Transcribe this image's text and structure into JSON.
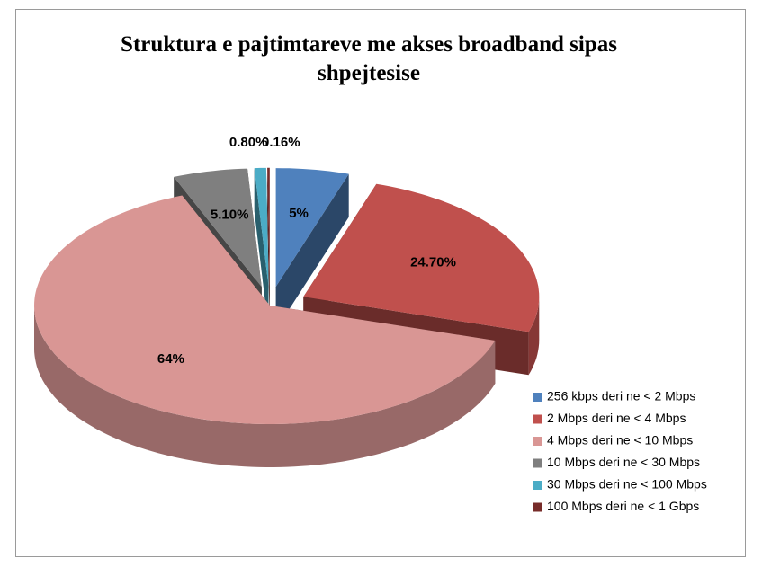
{
  "chart_data": {
    "type": "pie3d",
    "title": "Struktura e  pajtimtareve me akses broadband sipas shpejtesise",
    "categories": [
      "256 kbps deri ne < 2 Mbps",
      "2 Mbps deri ne < 4 Mbps",
      "4 Mbps deri ne < 10 Mbps",
      "10 Mbps deri ne < 30 Mbps",
      "30 Mbps deri ne < 100 Mbps",
      "100 Mbps deri ne < 1 Gbps"
    ],
    "values": [
      5,
      24.7,
      64,
      5.1,
      0.8,
      0.16
    ],
    "value_labels": [
      "5%",
      "24.70%",
      "64%",
      "5.10%",
      "0.80%",
      "0.16%"
    ],
    "colors": [
      "#4f81bd",
      "#c0504d",
      "#d99694",
      "#7f7f7f",
      "#4bacc6",
      "#772c2a"
    ],
    "legend": "right"
  }
}
